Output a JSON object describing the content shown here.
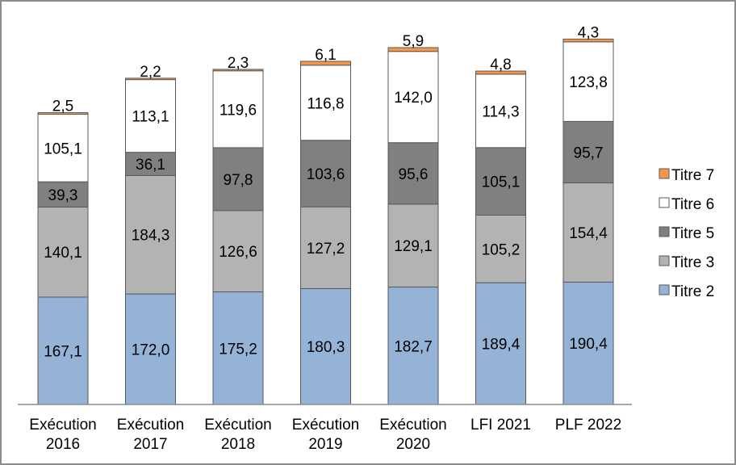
{
  "chart_data": {
    "type": "bar",
    "stacked": true,
    "title": "",
    "xlabel": "",
    "ylabel": "",
    "ylim": [
      0,
      575
    ],
    "grid": false,
    "legend_position": "right",
    "categories": [
      [
        "Exécution",
        "2016"
      ],
      [
        "Exécution",
        "2017"
      ],
      [
        "Exécution",
        "2018"
      ],
      [
        "Exécution",
        "2019"
      ],
      [
        "Exécution",
        "2020"
      ],
      [
        "LFI 2021"
      ],
      [
        "PLF 2022"
      ]
    ],
    "series": [
      {
        "name": "Titre 2",
        "color": "#95b3d7",
        "label_color": "#000000",
        "values": [
          167.1,
          172.0,
          175.2,
          180.3,
          182.7,
          189.4,
          190.4
        ],
        "labels": [
          "167,1",
          "172,0",
          "175,2",
          "180,3",
          "182,7",
          "189,4",
          "190,4"
        ]
      },
      {
        "name": "Titre 3",
        "color": "#b3b3b3",
        "label_color": "#000000",
        "values": [
          140.1,
          184.3,
          126.6,
          127.2,
          129.1,
          105.2,
          154.4
        ],
        "labels": [
          "140,1",
          "184,3",
          "126,6",
          "127,2",
          "129,1",
          "105,2",
          "154,4"
        ]
      },
      {
        "name": "Titre 5",
        "color": "#808080",
        "label_color": "#ffffff",
        "values": [
          39.3,
          36.1,
          97.8,
          103.6,
          95.6,
          105.1,
          95.7
        ],
        "labels": [
          "39,3",
          "36,1",
          "97,8",
          "103,6",
          "95,6",
          "105,1",
          "95,7"
        ]
      },
      {
        "name": "Titre 6",
        "color": "#ffffff",
        "label_color": "#000000",
        "values": [
          105.1,
          113.1,
          119.6,
          116.8,
          142.0,
          114.3,
          123.8
        ],
        "labels": [
          "105,1",
          "113,1",
          "119,6",
          "116,8",
          "142,0",
          "114,3",
          "123,8"
        ]
      },
      {
        "name": "Titre 7",
        "color": "#f79646",
        "label_color": "#000000",
        "values": [
          2.5,
          2.2,
          2.3,
          6.1,
          5.9,
          4.8,
          4.3
        ],
        "labels": [
          "2,5",
          "2,2",
          "2,3",
          "6,1",
          "5,9",
          "4,8",
          "4,3"
        ],
        "label_position": "above"
      }
    ],
    "legend_order": [
      "Titre 7",
      "Titre 6",
      "Titre 5",
      "Titre 3",
      "Titre 2"
    ]
  }
}
